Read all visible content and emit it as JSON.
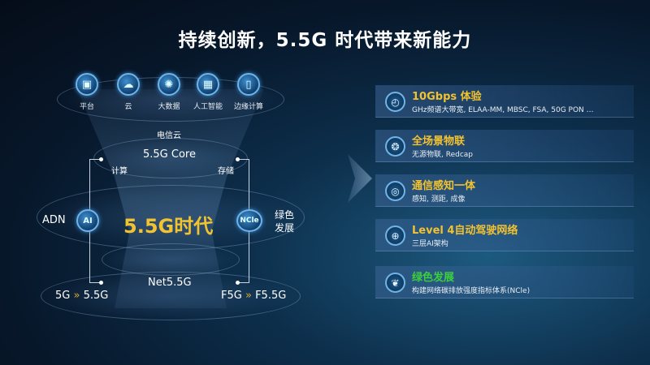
{
  "title": "持续创新，5.5G 时代带来新能力",
  "top_icons": [
    {
      "icon": "platform-icon",
      "label": "平台"
    },
    {
      "icon": "cloud-icon",
      "label": "云"
    },
    {
      "icon": "big-data-icon",
      "label": "大数据"
    },
    {
      "icon": "ai-chip-icon",
      "label": "人工智能"
    },
    {
      "icon": "edge-computing-icon",
      "label": "边缘计算"
    }
  ],
  "diagram": {
    "telecom_cloud": "电信云",
    "core": "5.5G Core",
    "compute": "计算",
    "storage": "存储",
    "adn": "ADN",
    "ai": "AI",
    "center": "5.5G时代",
    "ncle": "NCle",
    "green_line1": "绿色",
    "green_line2": "发展",
    "net": "Net5.5G",
    "left_from": "5G",
    "left_to": "5.5G",
    "right_from": "F5G",
    "right_to": "F5.5G",
    "arrow_glyph": "»"
  },
  "panels": [
    {
      "icon": "timer-icon",
      "glyph": "◴",
      "title": "10Gbps 体验",
      "subtitle": "GHz频谱大带宽, ELAA-MM, MBSC, FSA, 50G PON …",
      "color": "#f2c230"
    },
    {
      "icon": "iot-icon",
      "glyph": "❂",
      "title": "全场景物联",
      "subtitle": "无源物联, Redcap",
      "color": "#f2c230"
    },
    {
      "icon": "sensing-icon",
      "glyph": "◎",
      "title": "通信感知一体",
      "subtitle": "感知, 测距, 成像",
      "color": "#f2c230"
    },
    {
      "icon": "globe-network-icon",
      "glyph": "⊕",
      "title": "Level 4自动驾驶网络",
      "subtitle": "三层AI架构",
      "color": "#f2c230"
    },
    {
      "icon": "leaf-icon",
      "glyph": "❦",
      "title": "绿色发展",
      "subtitle": "构建网络碳排放强度指标体系(NCle)",
      "color": "#3ccf3c"
    }
  ]
}
